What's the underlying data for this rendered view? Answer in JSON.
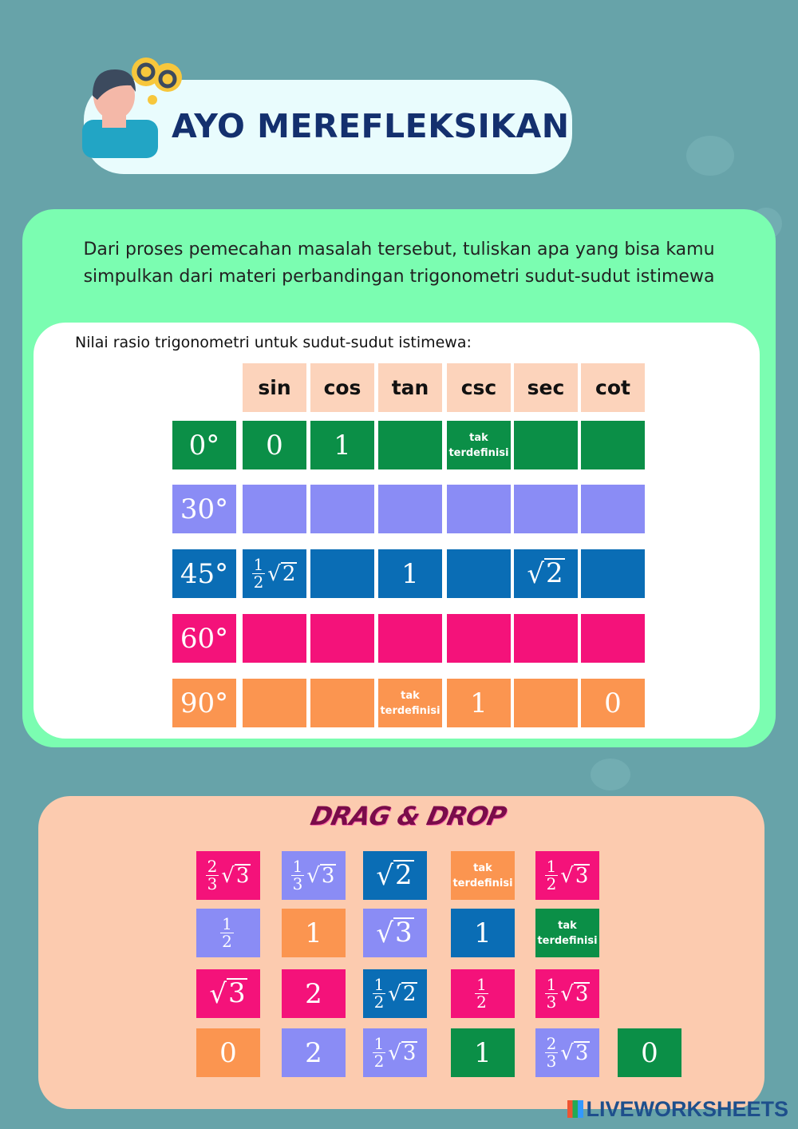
{
  "header": {
    "title": "AYO MEREFLEKSIKAN",
    "avatar_icon": "thinking-person-gears-icon"
  },
  "prompt": "Dari proses pemecahan masalah tersebut, tuliskan apa yang bisa kamu simpulkan dari materi perbandingan trigonometri sudut-sudut istimewa",
  "table": {
    "label": "Nilai rasio trigonometri untuk sudut-sudut istimewa:",
    "headers": [
      "sin",
      "cos",
      "tan",
      "csc",
      "sec",
      "cot"
    ],
    "rows": [
      {
        "angle": "0°",
        "color": "#0b8f47",
        "cells": [
          {
            "t": "int",
            "v": "0"
          },
          {
            "t": "int",
            "v": "1"
          },
          null,
          {
            "t": "text",
            "v": "tak terdefinisi"
          },
          null,
          null
        ]
      },
      {
        "angle": "30°",
        "color": "#8a8cf5",
        "cells": [
          null,
          null,
          null,
          null,
          null,
          null
        ]
      },
      {
        "angle": "45°",
        "color": "#0a6db5",
        "cells": [
          {
            "t": "fracsqrt",
            "n": "1",
            "d": "2",
            "r": "2"
          },
          null,
          {
            "t": "int",
            "v": "1"
          },
          null,
          {
            "t": "sqrt",
            "r": "2"
          },
          null
        ]
      },
      {
        "angle": "60°",
        "color": "#f4127a",
        "cells": [
          null,
          null,
          null,
          null,
          null,
          null
        ]
      },
      {
        "angle": "90°",
        "color": "#fb9550",
        "cells": [
          null,
          null,
          {
            "t": "text",
            "v": "tak terdefinisi"
          },
          {
            "t": "int",
            "v": "1"
          },
          null,
          {
            "t": "int",
            "v": "0"
          }
        ]
      }
    ]
  },
  "drag_drop": {
    "title": "DRAG & DROP",
    "tiles": [
      [
        {
          "c": "#f4127a",
          "t": "fracsqrt",
          "n": "2",
          "d": "3",
          "r": "3"
        },
        {
          "c": "#8a8cf5",
          "t": "fracsqrt",
          "n": "1",
          "d": "3",
          "r": "3"
        },
        {
          "c": "#0a6db5",
          "t": "sqrt",
          "r": "2"
        },
        {
          "c": "#fb9550",
          "t": "text",
          "v": "tak terdefinisi"
        },
        {
          "c": "#f4127a",
          "t": "fracsqrt",
          "n": "1",
          "d": "2",
          "r": "3"
        }
      ],
      [
        {
          "c": "#8a8cf5",
          "t": "frac",
          "n": "1",
          "d": "2"
        },
        {
          "c": "#fb9550",
          "t": "int",
          "v": "1"
        },
        {
          "c": "#8a8cf5",
          "t": "sqrt",
          "r": "3"
        },
        {
          "c": "#0a6db5",
          "t": "int",
          "v": "1"
        },
        {
          "c": "#0b8f47",
          "t": "text",
          "v": "tak terdefinisi"
        }
      ],
      [
        {
          "c": "#f4127a",
          "t": "sqrt",
          "r": "3"
        },
        {
          "c": "#f4127a",
          "t": "int",
          "v": "2"
        },
        {
          "c": "#0a6db5",
          "t": "fracsqrt",
          "n": "1",
          "d": "2",
          "r": "2"
        },
        {
          "c": "#f4127a",
          "t": "frac",
          "n": "1",
          "d": "2"
        },
        {
          "c": "#f4127a",
          "t": "fracsqrt",
          "n": "1",
          "d": "3",
          "r": "3"
        }
      ],
      [
        {
          "c": "#fb9550",
          "t": "int",
          "v": "0"
        },
        {
          "c": "#8a8cf5",
          "t": "int",
          "v": "2"
        },
        {
          "c": "#8a8cf5",
          "t": "fracsqrt",
          "n": "1",
          "d": "2",
          "r": "3"
        },
        {
          "c": "#0b8f47",
          "t": "int",
          "v": "1"
        },
        {
          "c": "#8a8cf5",
          "t": "fracsqrt",
          "n": "2",
          "d": "3",
          "r": "3"
        },
        {
          "c": "#0b8f47",
          "t": "int",
          "v": "0"
        }
      ]
    ]
  },
  "footer": {
    "logo": "LIVEWORKSHEETS"
  }
}
